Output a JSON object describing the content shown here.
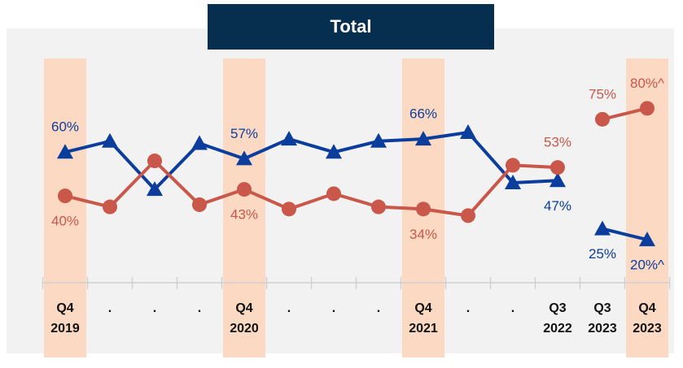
{
  "chart_data": {
    "type": "line",
    "title": "Total",
    "categories": [
      "Q4 2019",
      ".",
      ".",
      ".",
      "Q4 2020",
      ".",
      ".",
      ".",
      "Q4 2021",
      ".",
      ".",
      "Q3 2022",
      "Q3 2023",
      "Q4 2023"
    ],
    "highlight_categories": [
      0,
      4,
      8,
      13
    ],
    "ylim": [
      0,
      115
    ],
    "series": [
      {
        "color": "#0b3d9c",
        "marker": "triangle",
        "values": [
          60,
          65,
          43,
          64,
          57,
          66,
          60,
          65,
          66,
          69,
          46,
          47,
          null,
          null
        ],
        "value_labels": [
          "60%",
          null,
          null,
          null,
          "57%",
          null,
          null,
          null,
          "66%",
          null,
          null,
          "47%",
          null,
          null
        ]
      },
      {
        "color": "#0b3d9c",
        "marker": "triangle",
        "values": [
          null,
          null,
          null,
          null,
          null,
          null,
          null,
          null,
          null,
          null,
          null,
          null,
          25,
          20
        ],
        "value_labels": [
          null,
          null,
          null,
          null,
          null,
          null,
          null,
          null,
          null,
          null,
          null,
          null,
          "25%",
          "20%^"
        ]
      },
      {
        "color": "#c9574a",
        "marker": "circle",
        "values": [
          40,
          35,
          56,
          36,
          43,
          34,
          41,
          35,
          34,
          31,
          54,
          53,
          null,
          null
        ],
        "value_labels": [
          "40%",
          null,
          null,
          null,
          "43%",
          null,
          null,
          null,
          "34%",
          null,
          null,
          "53%",
          null,
          null
        ]
      },
      {
        "color": "#c9574a",
        "marker": "circle",
        "values": [
          null,
          null,
          null,
          null,
          null,
          null,
          null,
          null,
          null,
          null,
          null,
          null,
          75,
          80
        ],
        "value_labels": [
          null,
          null,
          null,
          null,
          null,
          null,
          null,
          null,
          null,
          null,
          null,
          null,
          "75%",
          "80%^"
        ]
      }
    ]
  }
}
